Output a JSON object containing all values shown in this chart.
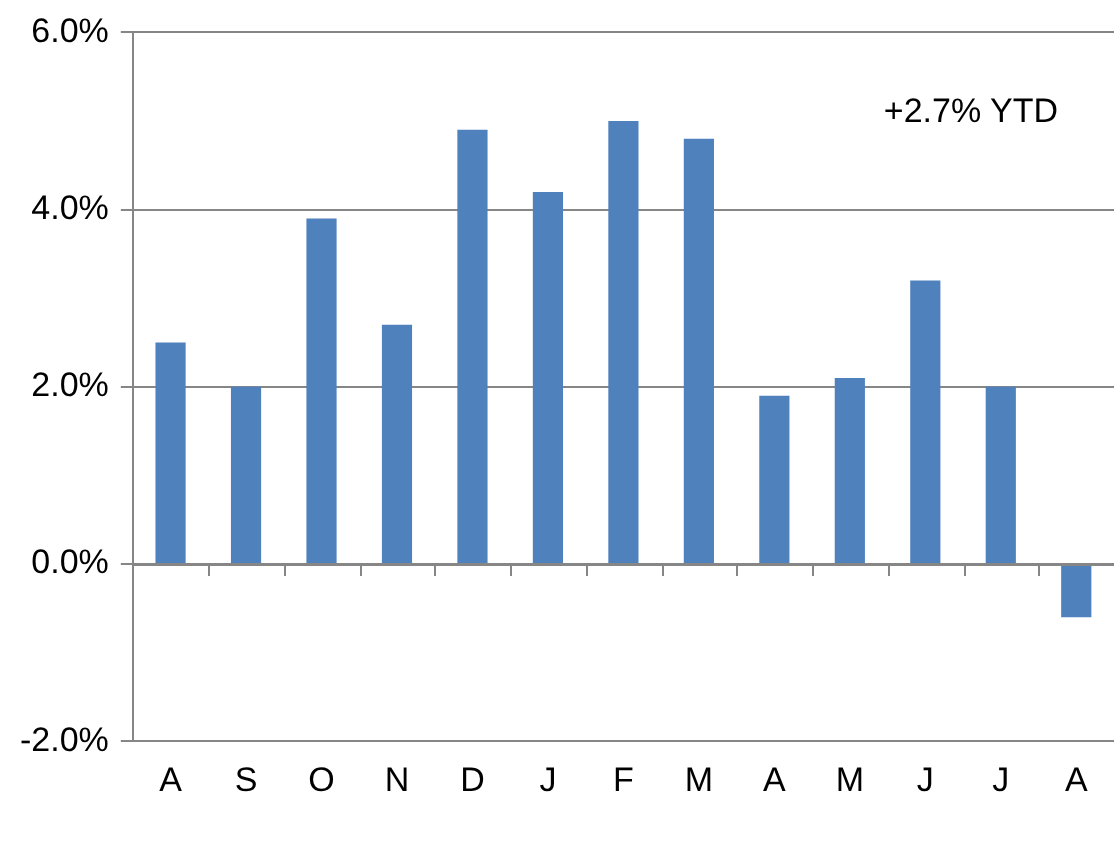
{
  "chart_data": {
    "type": "bar",
    "categories": [
      "A",
      "S",
      "O",
      "N",
      "D",
      "J",
      "F",
      "M",
      "A",
      "M",
      "J",
      "J",
      "A"
    ],
    "values": [
      2.5,
      2.0,
      3.9,
      2.7,
      4.9,
      4.2,
      5.0,
      4.8,
      1.9,
      2.1,
      3.2,
      2.0,
      -0.6
    ],
    "color": "#4f81bd",
    "ylim": [
      -2,
      6
    ],
    "yticks": [
      {
        "value": -2,
        "label": "-2.0%"
      },
      {
        "value": 0,
        "label": "0.0%"
      },
      {
        "value": 2,
        "label": "2.0%"
      },
      {
        "value": 4,
        "label": "4.0%"
      },
      {
        "value": 6,
        "label": "6.0%"
      }
    ],
    "grid": "y",
    "legend": false,
    "annotations": [
      "+2.7% YTD"
    ]
  }
}
